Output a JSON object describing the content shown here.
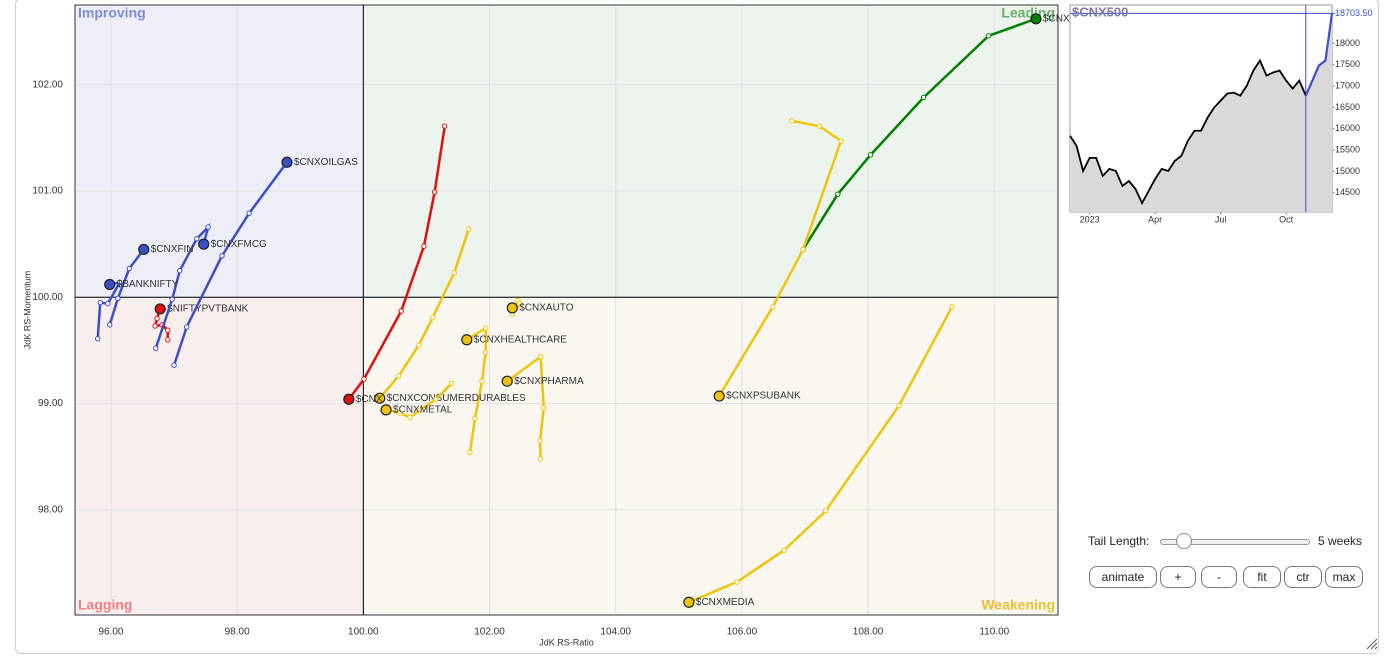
{
  "chart_data": [
    {
      "type": "rrg",
      "x_label": "JdK RS-Ratio",
      "y_label": "JdK RS-Momentum",
      "quadrant_labels": [
        "Improving",
        "Leading",
        "Lagging",
        "Weakening"
      ],
      "quadrant_center": {
        "x": 100,
        "y": 100
      },
      "xlim": [
        95.43,
        111.01
      ],
      "ylim": [
        97.01,
        102.75
      ],
      "xticks": [
        {
          "value": 96,
          "label": "96.00"
        },
        {
          "value": 98,
          "label": "98.00"
        },
        {
          "value": 100,
          "label": "100.00"
        },
        {
          "value": 102,
          "label": "102.00"
        },
        {
          "value": 104,
          "label": "104.00"
        },
        {
          "value": 106,
          "label": "106.00"
        },
        {
          "value": 108,
          "label": "108.00"
        },
        {
          "value": 110,
          "label": "110.00"
        }
      ],
      "yticks": [
        {
          "value": 98,
          "label": "98.00"
        },
        {
          "value": 99,
          "label": "99.00"
        },
        {
          "value": 100,
          "label": "100.00"
        },
        {
          "value": 101,
          "label": "101.00"
        },
        {
          "value": 102,
          "label": "102.00"
        }
      ],
      "grid": true,
      "series": [
        {
          "name": "$CNXREALTY",
          "color": "#008000",
          "x": [
            106.97,
            107.52,
            108.04,
            108.88,
            109.91,
            110.66
          ],
          "y": [
            100.45,
            100.97,
            101.34,
            101.88,
            102.46,
            102.62
          ]
        },
        {
          "name": "$CNXPSUBANK",
          "color": "#f0c40a",
          "x": [
            106.79,
            107.23,
            107.57,
            106.97,
            106.49,
            105.64
          ],
          "y": [
            101.66,
            101.61,
            101.47,
            100.45,
            99.91,
            99.07
          ]
        },
        {
          "name": "$CNXMEDIA",
          "color": "#f0c40a",
          "x": [
            109.33,
            108.49,
            107.33,
            106.67,
            105.92,
            105.16
          ],
          "y": [
            99.91,
            98.98,
            97.99,
            97.62,
            97.32,
            97.13
          ]
        },
        {
          "name": "$CNXAUTO",
          "color": "#f0c40a",
          "x": [
            102.45,
            102.48,
            102.36,
            102.42,
            102.36
          ],
          "y": [
            99.97,
            99.94,
            99.84,
            99.92,
            99.9
          ]
        },
        {
          "name": "$CNXHEALTHCARE",
          "color": "#f0c40a",
          "x": [
            101.69,
            101.77,
            101.88,
            101.94,
            101.94,
            101.64
          ],
          "y": [
            98.54,
            98.86,
            99.21,
            99.48,
            99.71,
            99.6
          ]
        },
        {
          "name": "$CNXPHARMA",
          "color": "#f0c40a",
          "x": [
            102.81,
            102.8,
            102.86,
            102.81,
            102.28
          ],
          "y": [
            98.48,
            98.65,
            98.96,
            99.44,
            99.21
          ]
        },
        {
          "name": "$CNXCONSUMERDURABLES",
          "color": "#f0c40a",
          "x": [
            101.67,
            101.44,
            101.1,
            100.88,
            100.56,
            100.26
          ],
          "y": [
            100.64,
            100.23,
            99.81,
            99.55,
            99.26,
            99.05
          ]
        },
        {
          "name": "$CNXMETAL",
          "color": "#f0c40a",
          "x": [
            101.4,
            101.15,
            100.9,
            100.74,
            100.58,
            100.36
          ],
          "y": [
            99.19,
            99.04,
            98.94,
            98.87,
            98.91,
            98.94
          ]
        },
        {
          "name": "$CNX",
          "color": "#e01010",
          "x": [
            101.29,
            101.13,
            100.96,
            100.6,
            100.01,
            99.77
          ],
          "y": [
            101.61,
            100.99,
            100.48,
            99.87,
            99.23,
            99.04
          ]
        },
        {
          "name": "$NIFTYPVTBANK",
          "color": "#e01010",
          "x": [
            96.9,
            96.9,
            96.81,
            96.7,
            96.73,
            96.78
          ],
          "y": [
            99.6,
            99.69,
            99.74,
            99.73,
            99.8,
            99.89
          ]
        },
        {
          "name": "$CNXOILGAS",
          "color": "#3b4fc8",
          "x": [
            97.0,
            97.2,
            97.76,
            98.19,
            98.79
          ],
          "y": [
            99.36,
            99.72,
            100.39,
            100.79,
            101.27
          ]
        },
        {
          "name": "$CNXFMCG",
          "color": "#3b4fc8",
          "x": [
            96.71,
            96.97,
            97.09,
            97.36,
            97.54,
            97.47
          ],
          "y": [
            99.52,
            99.98,
            100.25,
            100.55,
            100.66,
            100.5
          ]
        },
        {
          "name": "$CNXFIN",
          "color": "#3b4fc8",
          "x": [
            95.98,
            96.11,
            96.29,
            96.52
          ],
          "y": [
            99.74,
            99.99,
            100.27,
            100.45
          ]
        },
        {
          "name": "$BANKNIFTY",
          "color": "#3b4fc8",
          "x": [
            95.79,
            95.83,
            95.95,
            96.14,
            95.98
          ],
          "y": [
            99.61,
            99.95,
            99.94,
            100.14,
            100.12
          ]
        }
      ]
    },
    {
      "type": "area",
      "title": "$CNX500",
      "color": "#000000",
      "highlight_color": "#3b4fc8",
      "highlight_points": 5,
      "categories": [
        null,
        null,
        null,
        "2023",
        null,
        null,
        null,
        null,
        null,
        null,
        null,
        null,
        null,
        "Apr",
        null,
        null,
        null,
        null,
        null,
        null,
        null,
        null,
        null,
        "Jul",
        null,
        null,
        null,
        null,
        null,
        null,
        null,
        null,
        null,
        "Oct",
        null,
        null,
        null,
        null,
        null,
        null,
        null
      ],
      "values": [
        15835,
        15600,
        15012,
        15318,
        15318,
        14894,
        15059,
        15012,
        14659,
        14776,
        14588,
        14259,
        14541,
        14824,
        15059,
        15012,
        15247,
        15365,
        15718,
        15953,
        15953,
        16259,
        16494,
        16659,
        16824,
        16847,
        16776,
        17012,
        17365,
        17600,
        17247,
        17318,
        17365,
        17129,
        16941,
        17129,
        16776,
        17129,
        17482,
        17600,
        18703.5
      ],
      "ylim": [
        14050,
        18900
      ],
      "yticks": [
        14500,
        15000,
        15500,
        16000,
        16500,
        17000,
        17500,
        18000,
        {
          "value": 18703.5,
          "label": "18703.50"
        }
      ]
    }
  ],
  "controls": {
    "tail_label": "Tail Length:",
    "tail_value": "5 weeks",
    "buttons": [
      "animate",
      "+",
      "-",
      "fit",
      "ctr",
      "max"
    ]
  }
}
